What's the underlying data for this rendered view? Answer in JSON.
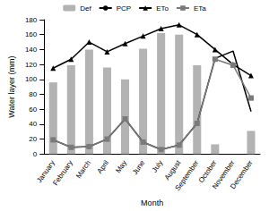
{
  "chart_data": {
    "type": "bar",
    "x_label": "Month",
    "y_label": "Water layer (mm)",
    "categories": [
      "January",
      "February",
      "March",
      "April",
      "May",
      "June",
      "July",
      "August",
      "September",
      "October",
      "November",
      "December"
    ],
    "series": [
      {
        "name": "Def",
        "type": "bar",
        "color": "#b3b3b3",
        "values": [
          96,
          119,
          140,
          116,
          100,
          141,
          162,
          160,
          119,
          13,
          0,
          31
        ]
      },
      {
        "name": "PCP",
        "type": "line",
        "color": "#000000",
        "marker": "none",
        "values": [
          19,
          9,
          10,
          20,
          47,
          16,
          6,
          12,
          41,
          128,
          138,
          57
        ]
      },
      {
        "name": "ETo",
        "type": "line",
        "color": "#000000",
        "marker": "triangle",
        "values": [
          115,
          127,
          150,
          137,
          148,
          158,
          168,
          173,
          160,
          140,
          120,
          105
        ]
      },
      {
        "name": "ETa",
        "type": "line",
        "color": "#7a7a7a",
        "marker": "square",
        "values": [
          19,
          9,
          10,
          20,
          47,
          16,
          6,
          12,
          41,
          127,
          119,
          75
        ]
      }
    ],
    "ylim": [
      0,
      180
    ],
    "yticks": [
      0,
      20,
      40,
      60,
      80,
      100,
      120,
      140,
      160,
      180
    ],
    "grid": false,
    "legend": "top"
  }
}
